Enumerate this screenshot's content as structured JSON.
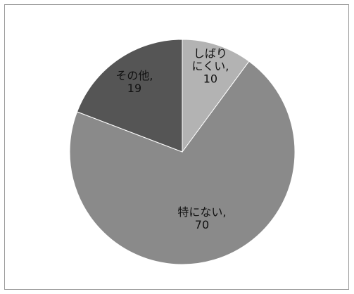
{
  "chart_data": {
    "type": "pie",
    "title": "",
    "slices": [
      {
        "category": "しばりにくい",
        "value": 10,
        "label_lines": [
          "しばり",
          "にくい,",
          "10"
        ],
        "color": "#b3b3b3"
      },
      {
        "category": "特にない",
        "value": 70,
        "label_lines": [
          "特にない,",
          "70"
        ],
        "color": "#8a8a8a"
      },
      {
        "category": "その他",
        "value": 19,
        "label_lines": [
          "その他,",
          "19"
        ],
        "color": "#555555"
      }
    ],
    "start_angle_deg": 0,
    "direction": "clockwise",
    "legend": "none",
    "data_labels": "category, value"
  }
}
